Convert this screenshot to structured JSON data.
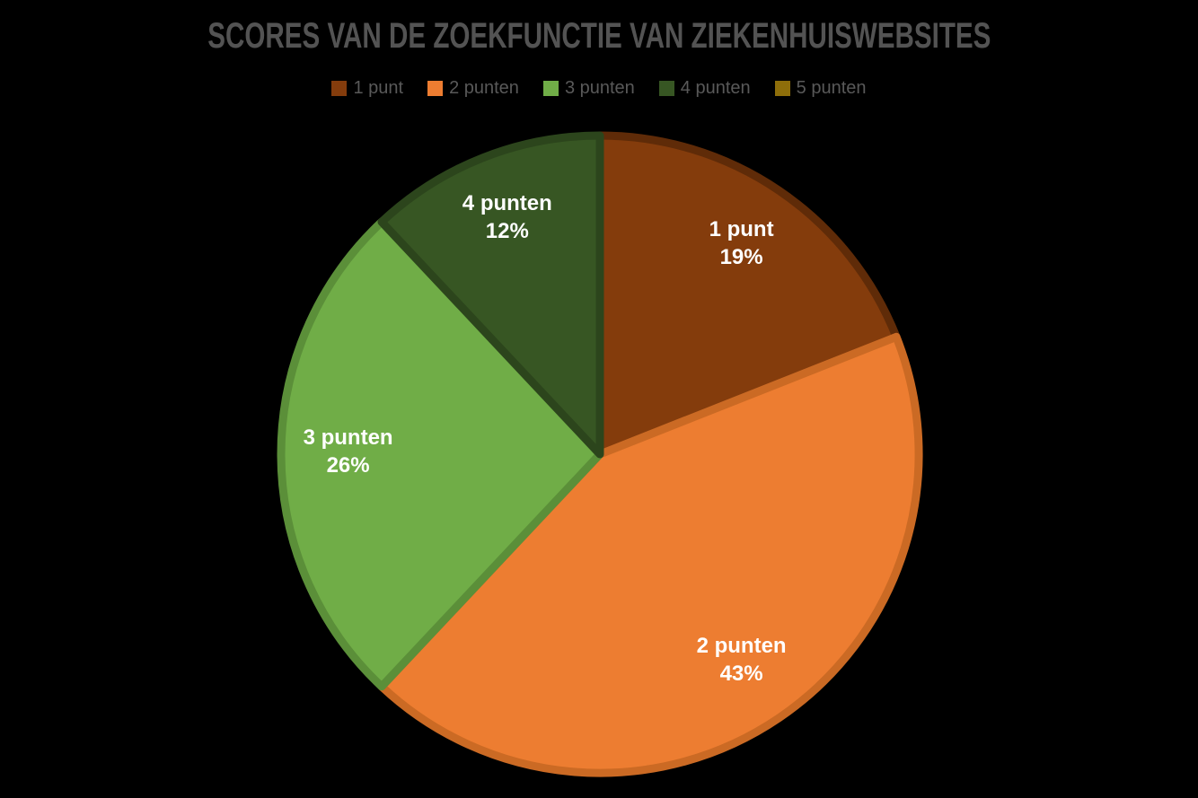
{
  "chart_data": {
    "type": "pie",
    "title": "SCORES VAN DE ZOEKFUNCTIE VAN ZIEKENHUISWEBSITES",
    "legend_position": "top",
    "direction": "clockwise",
    "start_angle_deg": 0,
    "slices": [
      {
        "label": "1 punt",
        "value": 19,
        "pct_label": "19%",
        "color": "#843C0C",
        "edge_color": "#5F2B08"
      },
      {
        "label": "2 punten",
        "value": 43,
        "pct_label": "43%",
        "color": "#ED7D31",
        "edge_color": "#CB6A24"
      },
      {
        "label": "3 punten",
        "value": 26,
        "pct_label": "26%",
        "color": "#70AD47",
        "edge_color": "#5B8F39"
      },
      {
        "label": "4 punten",
        "value": 12,
        "pct_label": "12%",
        "color": "#375623",
        "edge_color": "#2C451C"
      },
      {
        "label": "5 punten",
        "value": 0,
        "pct_label": "",
        "color": "#8E6E0A",
        "edge_color": "#6F5608"
      }
    ],
    "label_text_color": "#FFFFFF",
    "title_color": "#535353",
    "legend_text_color": "#595959",
    "background_color": "#000000"
  }
}
